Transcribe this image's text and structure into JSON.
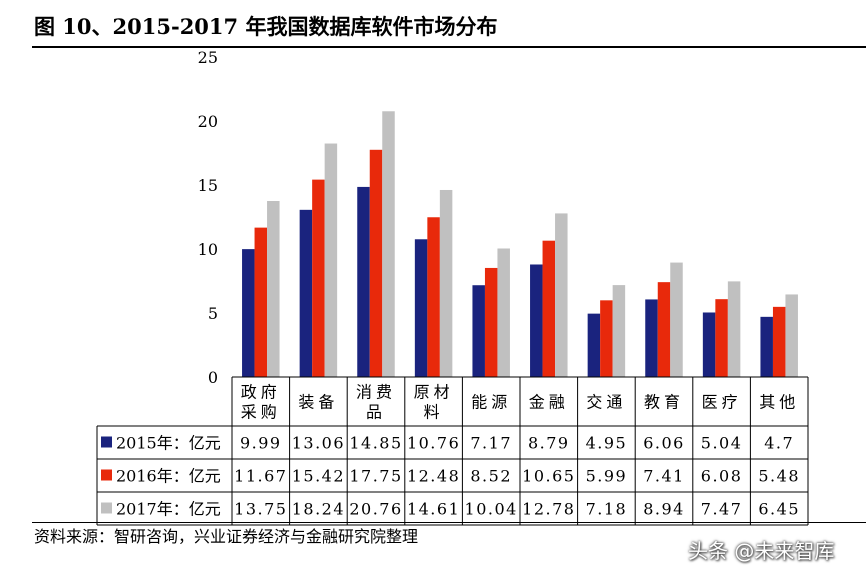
{
  "title": "图 10、2015-2017 年我国数据库软件市场分布",
  "source": "资料来源：智研咨询，兴业证券经济与金融研究院整理",
  "watermark": "头条 @未来智库",
  "chart_data": {
    "type": "bar",
    "title": "图 10、2015-2017 年我国数据库软件市场分布",
    "xlabel": "",
    "ylabel": "",
    "ylim": [
      0,
      25
    ],
    "yticks": [
      0,
      5,
      10,
      15,
      20,
      25
    ],
    "legend_placement": "data table",
    "grid": false,
    "categories": [
      "政府采购",
      "装备",
      "消费品",
      "原材料",
      "能源",
      "金融",
      "交通",
      "教育",
      "医疗",
      "其他"
    ],
    "category_label_lines": [
      [
        "政府",
        "采购"
      ],
      [
        "装备"
      ],
      [
        "消费",
        "品"
      ],
      [
        "原材",
        "料"
      ],
      [
        "能源"
      ],
      [
        "金融"
      ],
      [
        "交通"
      ],
      [
        "教育"
      ],
      [
        "医疗"
      ],
      [
        "其他"
      ]
    ],
    "series": [
      {
        "name": "2015年：亿元",
        "color": "#1a237e",
        "values": [
          9.99,
          13.06,
          14.85,
          10.76,
          7.17,
          8.79,
          4.95,
          6.06,
          5.04,
          4.7
        ],
        "labels": [
          "9.99",
          "13.06",
          "14.85",
          "10.76",
          "7.17",
          "8.79",
          "4.95",
          "6.06",
          "5.04",
          "4.7"
        ]
      },
      {
        "name": "2016年：亿元",
        "color": "#e8290b",
        "values": [
          11.67,
          15.42,
          17.75,
          12.48,
          8.52,
          10.65,
          5.99,
          7.41,
          6.08,
          5.48
        ],
        "labels": [
          "11.67",
          "15.42",
          "17.75",
          "12.48",
          "8.52",
          "10.65",
          "5.99",
          "7.41",
          "6.08",
          "5.48"
        ]
      },
      {
        "name": "2017年：亿元",
        "color": "#c0c0c0",
        "values": [
          13.75,
          18.24,
          20.76,
          14.61,
          10.04,
          12.78,
          7.18,
          8.94,
          7.47,
          6.45
        ],
        "labels": [
          "13.75",
          "18.24",
          "20.76",
          "14.61",
          "10.04",
          "12.78",
          "7.18",
          "8.94",
          "7.47",
          "6.45"
        ]
      }
    ]
  }
}
